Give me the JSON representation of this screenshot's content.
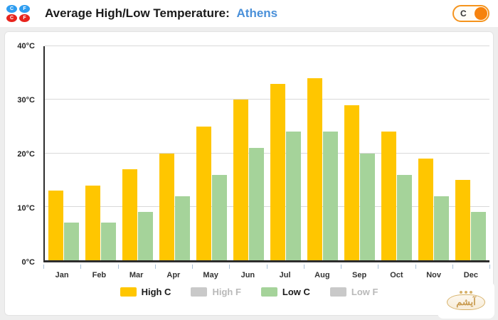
{
  "header": {
    "title": "Average High/Low Temperature:",
    "city": "Athens",
    "unit_toggle": {
      "label": "C"
    },
    "unit_icons": [
      {
        "label": "C",
        "color_class": "blue"
      },
      {
        "label": "F",
        "color_class": "blue"
      },
      {
        "label": "C",
        "color_class": "red"
      },
      {
        "label": "F",
        "color_class": "red"
      }
    ]
  },
  "chart_data": {
    "type": "bar",
    "title": "Average High/Low Temperature: Athens",
    "categories": [
      "Jan",
      "Feb",
      "Mar",
      "Apr",
      "May",
      "Jun",
      "Jul",
      "Aug",
      "Sep",
      "Oct",
      "Nov",
      "Dec"
    ],
    "series": [
      {
        "name": "High C",
        "color": "#ffc600",
        "active": true,
        "values": [
          13,
          14,
          17,
          20,
          25,
          30,
          33,
          34,
          29,
          24,
          19,
          15
        ]
      },
      {
        "name": "High F",
        "color": "#c9c9c9",
        "active": false,
        "values": null
      },
      {
        "name": "Low C",
        "color": "#a5d39a",
        "active": true,
        "values": [
          7,
          7,
          9,
          12,
          16,
          21,
          24,
          24,
          20,
          16,
          12,
          9
        ]
      },
      {
        "name": "Low F",
        "color": "#c9c9c9",
        "active": false,
        "values": null
      }
    ],
    "ylim": [
      0,
      40
    ],
    "y_tick_values": [
      0,
      10,
      20,
      30,
      40
    ],
    "y_tick_labels": [
      "0°C",
      "10°C",
      "20°C",
      "30°C",
      "40°C"
    ],
    "grid": true,
    "legend_position": "bottom"
  },
  "watermark": {
    "text": "آیشم"
  }
}
